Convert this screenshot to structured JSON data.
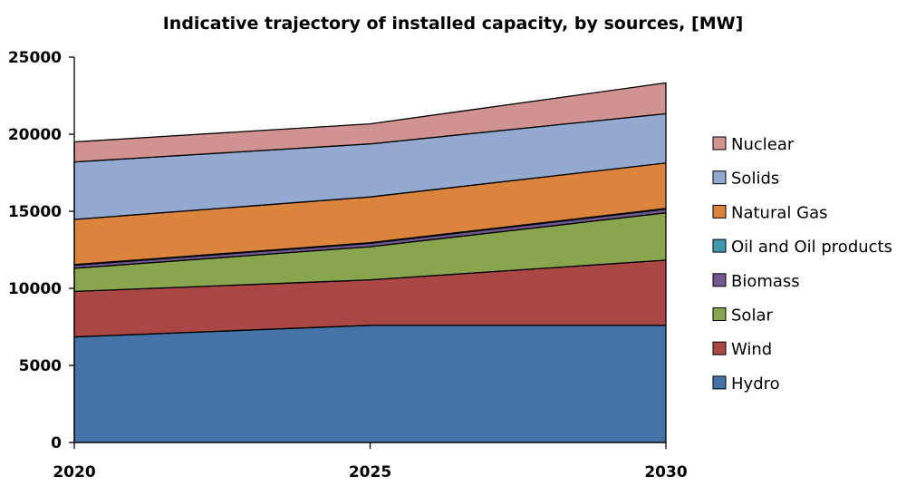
{
  "chart_data": {
    "type": "area",
    "stacked": true,
    "title": "Indicative trajectory of installed capacity, by sources, [MW]",
    "xlabel": "",
    "ylabel": "",
    "x": [
      "2020",
      "2025",
      "2030"
    ],
    "ylim": [
      0,
      25000
    ],
    "yticks": [
      "0",
      "5000",
      "10000",
      "15000",
      "20000",
      "25000"
    ],
    "grid": false,
    "legend_position": "right",
    "series": [
      {
        "name": "Hydro",
        "color": "#4572a7",
        "values": [
          6850,
          7600,
          7600
        ]
      },
      {
        "name": "Wind",
        "color": "#aa4643",
        "values": [
          2950,
          2950,
          4230
        ]
      },
      {
        "name": "Solar",
        "color": "#89a54e",
        "values": [
          1500,
          2150,
          3070
        ]
      },
      {
        "name": "Biomass",
        "color": "#71588f",
        "values": [
          200,
          220,
          240
        ]
      },
      {
        "name": "Oil and Oil products",
        "color": "#4198af",
        "values": [
          40,
          40,
          40
        ]
      },
      {
        "name": "Natural Gas",
        "color": "#db843d",
        "values": [
          2930,
          2970,
          2950
        ]
      },
      {
        "name": "Solids",
        "color": "#93a9cf",
        "values": [
          3730,
          3440,
          3200
        ]
      },
      {
        "name": "Nuclear",
        "color": "#d19392",
        "values": [
          1300,
          1300,
          2000
        ]
      }
    ]
  }
}
